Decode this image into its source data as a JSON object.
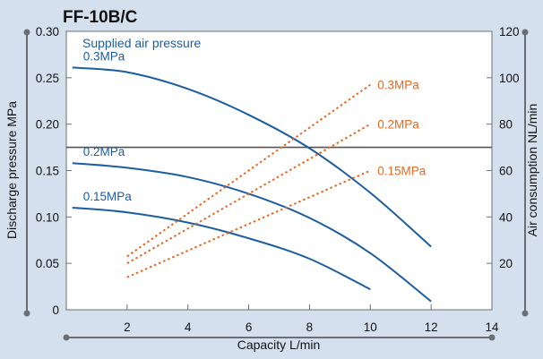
{
  "chart_data": {
    "type": "line",
    "title": "FF-10B/C",
    "xlabel": "Capacity  L/min",
    "ylabel": "Discharge pressure  MPa",
    "y2label": "Air consumption  NL/min",
    "xlim": [
      0,
      14
    ],
    "ylim": [
      0,
      0.3
    ],
    "y2lim": [
      0,
      120
    ],
    "x_ticks": [
      "2",
      "4",
      "6",
      "8",
      "10",
      "12",
      "14"
    ],
    "y_ticks": [
      "0",
      "0.05",
      "0.10",
      "0.15",
      "0.20",
      "0.25",
      "0.30"
    ],
    "y2_ticks": [
      "20",
      "40",
      "60",
      "80",
      "100",
      "120"
    ],
    "annotation": "Supplied air pressure",
    "grid": false,
    "reference_line": {
      "y": 0.175
    },
    "colors": {
      "pressure": "#1b5d9e",
      "consumption": "#e3691f",
      "axis": "#6b6f75"
    },
    "pressure_series": [
      {
        "name": "0.3MPa",
        "x": [
          0.2,
          2,
          4,
          6,
          8,
          10,
          12
        ],
        "y": [
          0.261,
          0.256,
          0.238,
          0.21,
          0.174,
          0.126,
          0.068
        ]
      },
      {
        "name": "0.2MPa",
        "x": [
          0.2,
          2,
          4,
          6,
          8,
          10,
          12
        ],
        "y": [
          0.158,
          0.153,
          0.143,
          0.125,
          0.099,
          0.061,
          0.009
        ]
      },
      {
        "name": "0.15MPa",
        "x": [
          0.2,
          2,
          4,
          6,
          8,
          10
        ],
        "y": [
          0.11,
          0.105,
          0.094,
          0.077,
          0.055,
          0.022
        ]
      }
    ],
    "consumption_series": [
      {
        "name": "0.3MPa",
        "x": [
          2,
          10
        ],
        "y": [
          23,
          97
        ]
      },
      {
        "name": "0.2MPa",
        "x": [
          2,
          10
        ],
        "y": [
          20,
          80
        ]
      },
      {
        "name": "0.15MPa",
        "x": [
          2,
          10
        ],
        "y": [
          14,
          60
        ]
      }
    ]
  }
}
